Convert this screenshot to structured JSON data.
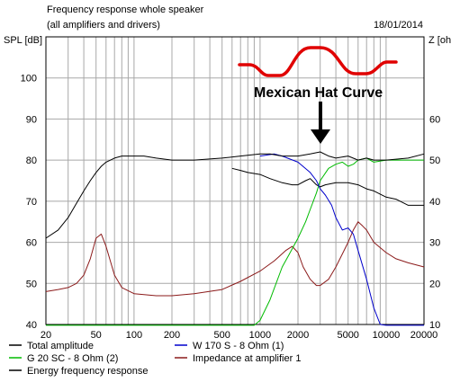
{
  "header": {
    "title": "Frequency response whole speaker",
    "subtitle": "(all amplifiers and drivers)",
    "date": "18/01/2014"
  },
  "chart_data": {
    "type": "line",
    "title": "Frequency response whole speaker",
    "subtitle": "(all amplifiers and drivers)",
    "xscale": "log",
    "xlim": [
      20,
      20000
    ],
    "x_ticks": [
      20,
      50,
      100,
      200,
      500,
      1000,
      2000,
      5000,
      10000,
      20000
    ],
    "x_tick_labels": [
      "20",
      "50",
      "100",
      "200",
      "500",
      "1000",
      "2000",
      "5000",
      "10000",
      "20000"
    ],
    "ylabel_left": "SPL [dB]",
    "ylim_left": [
      40,
      110
    ],
    "y_ticks_left": [
      40,
      50,
      60,
      70,
      80,
      90,
      100
    ],
    "ylabel_right": "Z [oh",
    "ylim_right": [
      10,
      80
    ],
    "y_ticks_right": [
      10,
      20,
      30,
      40,
      50,
      60
    ],
    "grid": true,
    "legend_placement": "below",
    "series": [
      {
        "name": "Total amplitude",
        "color": "#000000",
        "axis": "left",
        "points": [
          [
            20,
            61
          ],
          [
            25,
            63
          ],
          [
            30,
            66
          ],
          [
            35,
            69.5
          ],
          [
            40,
            72.5
          ],
          [
            45,
            75
          ],
          [
            50,
            77
          ],
          [
            55,
            78.5
          ],
          [
            60,
            79.5
          ],
          [
            70,
            80.5
          ],
          [
            80,
            81
          ],
          [
            100,
            81
          ],
          [
            120,
            81
          ],
          [
            150,
            80.5
          ],
          [
            200,
            80
          ],
          [
            300,
            80
          ],
          [
            500,
            80.5
          ],
          [
            700,
            81
          ],
          [
            1000,
            81.5
          ],
          [
            1200,
            81.5
          ],
          [
            1500,
            81
          ],
          [
            2000,
            81
          ],
          [
            2500,
            81.5
          ],
          [
            3000,
            82
          ],
          [
            3500,
            81
          ],
          [
            4000,
            80.5
          ],
          [
            5000,
            81
          ],
          [
            6000,
            80
          ],
          [
            7000,
            80.5
          ],
          [
            8000,
            80
          ],
          [
            10000,
            80
          ],
          [
            15000,
            80.5
          ],
          [
            20000,
            81.5
          ]
        ]
      },
      {
        "name": "W 170 S - 8 Ohm (1)",
        "color": "#0000cc",
        "axis": "left",
        "points": [
          [
            1000,
            81
          ],
          [
            1300,
            81.5
          ],
          [
            1500,
            81
          ],
          [
            2000,
            79.5
          ],
          [
            2500,
            77
          ],
          [
            2800,
            75
          ],
          [
            3000,
            73
          ],
          [
            3300,
            71.5
          ],
          [
            3700,
            69
          ],
          [
            4000,
            66
          ],
          [
            4500,
            63
          ],
          [
            5000,
            63.5
          ],
          [
            5500,
            62
          ],
          [
            6000,
            58
          ],
          [
            7000,
            51
          ],
          [
            8000,
            44
          ],
          [
            9000,
            40
          ],
          [
            10000,
            39.8
          ],
          [
            20000,
            39.8
          ]
        ]
      },
      {
        "name": "G 20 SC - 8 Ohm (2)",
        "color": "#00bb00",
        "axis": "left",
        "points": [
          [
            20,
            39.8
          ],
          [
            900,
            39.8
          ],
          [
            1000,
            41
          ],
          [
            1200,
            46
          ],
          [
            1500,
            54
          ],
          [
            1700,
            57
          ],
          [
            2000,
            61
          ],
          [
            2300,
            65
          ],
          [
            2500,
            68
          ],
          [
            2800,
            72
          ],
          [
            3000,
            75
          ],
          [
            3500,
            78
          ],
          [
            4000,
            79
          ],
          [
            4500,
            79.5
          ],
          [
            5000,
            78.5
          ],
          [
            5500,
            79
          ],
          [
            6000,
            80
          ],
          [
            7000,
            80.5
          ],
          [
            8000,
            79.5
          ],
          [
            10000,
            80
          ],
          [
            20000,
            80
          ]
        ]
      },
      {
        "name": "Impedance at amplifier 1",
        "color": "#8b1a1a",
        "axis": "right",
        "points": [
          [
            20,
            18
          ],
          [
            25,
            18.5
          ],
          [
            30,
            19
          ],
          [
            35,
            20
          ],
          [
            40,
            22
          ],
          [
            45,
            26
          ],
          [
            50,
            31
          ],
          [
            55,
            32
          ],
          [
            60,
            29
          ],
          [
            70,
            22
          ],
          [
            80,
            19
          ],
          [
            100,
            17.5
          ],
          [
            150,
            17
          ],
          [
            200,
            17
          ],
          [
            300,
            17.5
          ],
          [
            500,
            18.5
          ],
          [
            700,
            20.5
          ],
          [
            1000,
            23
          ],
          [
            1300,
            25.5
          ],
          [
            1600,
            28
          ],
          [
            1800,
            29
          ],
          [
            2000,
            27.5
          ],
          [
            2200,
            24
          ],
          [
            2500,
            21
          ],
          [
            2800,
            19.5
          ],
          [
            3000,
            19.5
          ],
          [
            3500,
            21
          ],
          [
            4000,
            24
          ],
          [
            5000,
            30
          ],
          [
            5500,
            33
          ],
          [
            6000,
            35
          ],
          [
            6500,
            34
          ],
          [
            7000,
            33
          ],
          [
            8000,
            30
          ],
          [
            10000,
            27.5
          ],
          [
            12000,
            26
          ],
          [
            15000,
            25
          ],
          [
            20000,
            24
          ]
        ]
      },
      {
        "name": "Energy frequency response",
        "color": "#000000",
        "axis": "left",
        "points": [
          [
            600,
            78
          ],
          [
            700,
            77.5
          ],
          [
            800,
            77
          ],
          [
            1000,
            76.5
          ],
          [
            1200,
            75.5
          ],
          [
            1500,
            74.5
          ],
          [
            1800,
            74
          ],
          [
            2000,
            74
          ],
          [
            2300,
            75
          ],
          [
            2500,
            75.5
          ],
          [
            2800,
            74
          ],
          [
            3000,
            73.5
          ],
          [
            3300,
            74
          ],
          [
            4000,
            74.5
          ],
          [
            5000,
            74.5
          ],
          [
            6000,
            74
          ],
          [
            7000,
            73
          ],
          [
            8000,
            72.5
          ],
          [
            10000,
            71
          ],
          [
            12000,
            70.5
          ],
          [
            15000,
            69
          ],
          [
            20000,
            69
          ]
        ]
      }
    ],
    "annotations": [
      {
        "text": "Mexican Hat Curve",
        "color": "#e00000"
      }
    ]
  }
}
